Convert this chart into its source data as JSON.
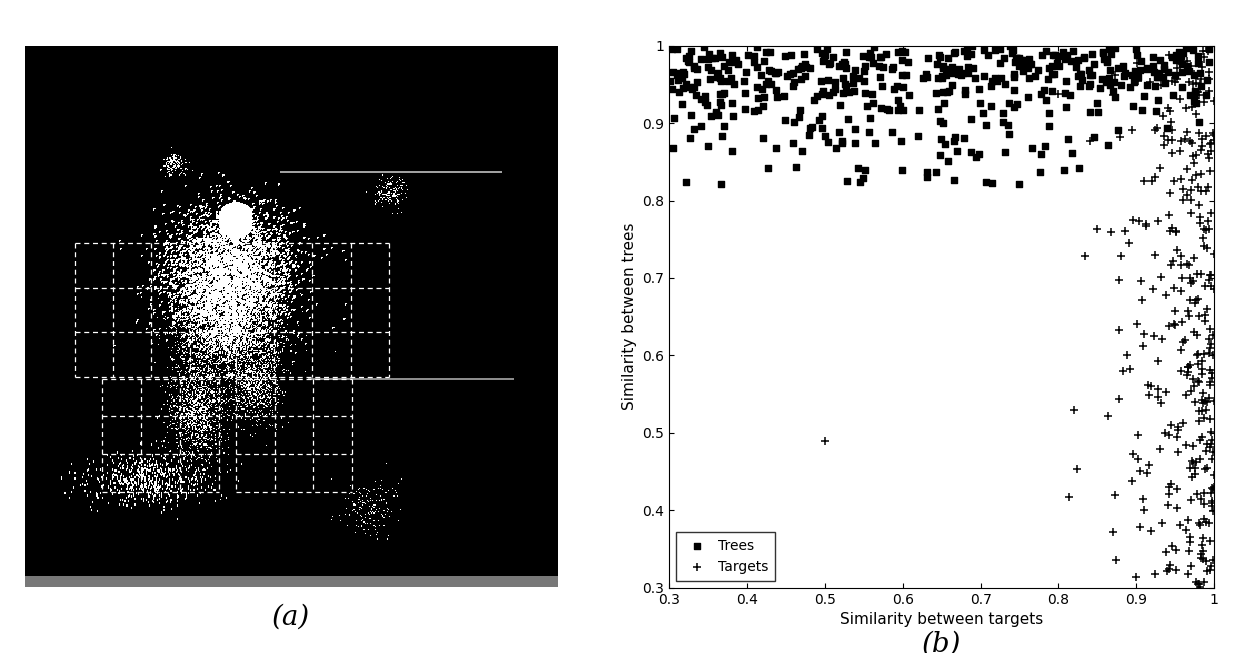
{
  "left_panel_label": "(a)",
  "right_panel_label": "(b)",
  "xlabel": "Similarity between targets",
  "ylabel": "Similarity between trees",
  "xlim": [
    0.3,
    1.0
  ],
  "ylim": [
    0.3,
    1.0
  ],
  "xticks": [
    0.3,
    0.4,
    0.5,
    0.6,
    0.7,
    0.8,
    0.9,
    1.0
  ],
  "yticks": [
    0.3,
    0.4,
    0.5,
    0.6,
    0.7,
    0.8,
    0.9,
    1.0
  ],
  "legend_labels": [
    "Targets",
    "Trees"
  ],
  "marker_color": "#000000",
  "background_color": "#ffffff",
  "label_fontsize": 11,
  "tick_fontsize": 10,
  "panel_label_fontsize": 20,
  "seed": 42,
  "img_seed": 7,
  "n_trees_main": 400,
  "n_trees_scattered": 100,
  "n_targets_main": 350
}
